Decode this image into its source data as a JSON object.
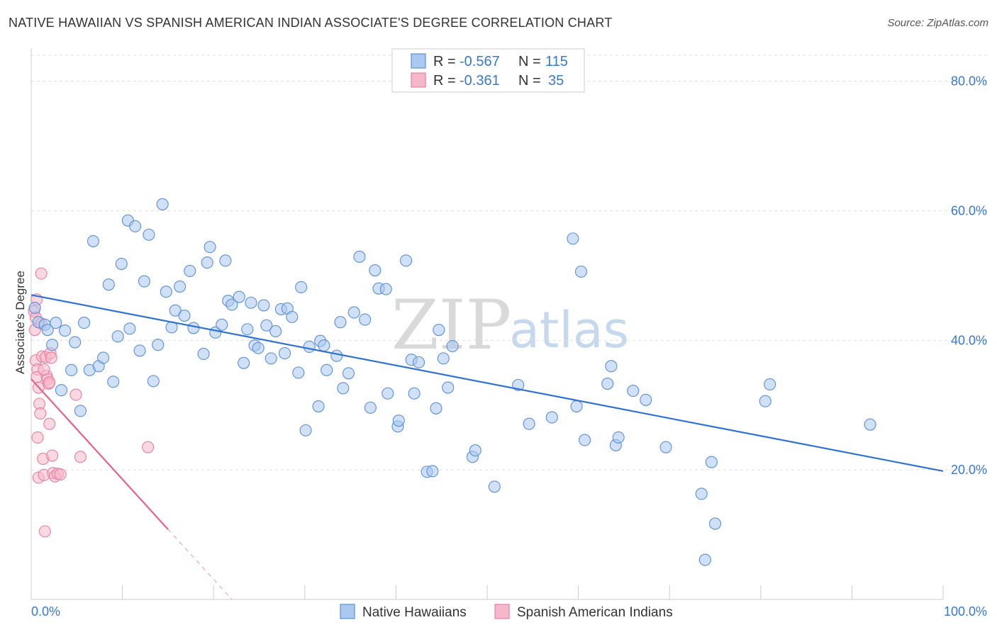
{
  "header": {
    "title": "NATIVE HAWAIIAN VS SPANISH AMERICAN INDIAN ASSOCIATE'S DEGREE CORRELATION CHART",
    "source": "Source: ZipAtlas.com"
  },
  "watermark": {
    "zip": "ZIP",
    "atlas": "atlas"
  },
  "colors": {
    "blue_fill": "#aac8f0",
    "blue_stroke": "#5b8fd4",
    "blue_line": "#2f72d0",
    "pink_fill": "#f5b8cb",
    "pink_stroke": "#e87fa2",
    "pink_line": "#e5628f",
    "accent_text": "#3a78c9",
    "grid": "#dddddd"
  },
  "legend": {
    "rows": [
      {
        "r_label": "R =",
        "r_value": "-0.567",
        "n_label": "N =",
        "n_value": "115"
      },
      {
        "r_label": "R =",
        "r_value": "-0.361",
        "n_label": "N =",
        "n_value": "35"
      }
    ]
  },
  "bottom_legend": {
    "items": [
      {
        "label": "Native Hawaiians"
      },
      {
        "label": "Spanish American Indians"
      }
    ]
  },
  "chart_data": {
    "type": "scatter",
    "title": "NATIVE HAWAIIAN VS SPANISH AMERICAN INDIAN ASSOCIATE'S DEGREE CORRELATION CHART",
    "xlabel": "",
    "ylabel": "Associate's Degree",
    "xlim": [
      0,
      100
    ],
    "ylim": [
      0,
      84
    ],
    "x_tick_labels": {
      "min": "0.0%",
      "max": "100.0%"
    },
    "y_ticks": [
      {
        "value": 80,
        "label": "80.0%"
      },
      {
        "value": 60,
        "label": "60.0%"
      },
      {
        "value": 40,
        "label": "40.0%"
      },
      {
        "value": 20,
        "label": "20.0%"
      }
    ],
    "series": [
      {
        "name": "Native Hawaiians",
        "color": "blue",
        "r": -0.567,
        "n": 115,
        "trend": {
          "x0": 0,
          "y0": 47.0,
          "x1": 100,
          "y1": 19.8,
          "dash_from": null
        },
        "points": [
          [
            0.8,
            42.8
          ],
          [
            1.5,
            42.4
          ],
          [
            1.8,
            41.6
          ],
          [
            2.3,
            39.3
          ],
          [
            2.7,
            42.7
          ],
          [
            3.3,
            32.3
          ],
          [
            3.7,
            41.5
          ],
          [
            4.4,
            35.4
          ],
          [
            4.8,
            39.7
          ],
          [
            5.4,
            29.1
          ],
          [
            5.8,
            42.7
          ],
          [
            6.4,
            35.4
          ],
          [
            6.8,
            55.3
          ],
          [
            7.4,
            36.0
          ],
          [
            7.9,
            37.3
          ],
          [
            8.5,
            48.6
          ],
          [
            9.0,
            33.6
          ],
          [
            9.5,
            40.6
          ],
          [
            9.9,
            51.8
          ],
          [
            10.6,
            58.5
          ],
          [
            10.8,
            41.8
          ],
          [
            11.4,
            57.6
          ],
          [
            11.9,
            38.4
          ],
          [
            12.4,
            49.1
          ],
          [
            12.9,
            56.3
          ],
          [
            13.4,
            33.7
          ],
          [
            13.9,
            39.3
          ],
          [
            14.4,
            61.0
          ],
          [
            14.8,
            47.5
          ],
          [
            15.4,
            42.0
          ],
          [
            15.8,
            44.6
          ],
          [
            16.3,
            48.3
          ],
          [
            16.8,
            43.8
          ],
          [
            17.4,
            50.7
          ],
          [
            17.8,
            41.9
          ],
          [
            18.9,
            37.9
          ],
          [
            19.3,
            52.0
          ],
          [
            19.6,
            54.4
          ],
          [
            20.2,
            41.2
          ],
          [
            20.9,
            42.4
          ],
          [
            21.3,
            52.3
          ],
          [
            21.6,
            46.1
          ],
          [
            22.0,
            45.5
          ],
          [
            22.8,
            46.7
          ],
          [
            23.3,
            36.5
          ],
          [
            23.7,
            41.7
          ],
          [
            24.1,
            45.8
          ],
          [
            24.5,
            39.2
          ],
          [
            24.9,
            38.8
          ],
          [
            25.5,
            45.4
          ],
          [
            25.8,
            42.3
          ],
          [
            26.3,
            37.2
          ],
          [
            26.8,
            41.4
          ],
          [
            27.4,
            44.8
          ],
          [
            27.8,
            38.0
          ],
          [
            28.1,
            44.9
          ],
          [
            28.6,
            43.6
          ],
          [
            29.3,
            35.0
          ],
          [
            29.6,
            48.2
          ],
          [
            30.1,
            26.1
          ],
          [
            30.5,
            39.0
          ],
          [
            31.5,
            29.8
          ],
          [
            31.7,
            39.9
          ],
          [
            32.1,
            39.2
          ],
          [
            32.4,
            35.4
          ],
          [
            33.5,
            37.6
          ],
          [
            33.9,
            42.8
          ],
          [
            34.2,
            32.6
          ],
          [
            34.8,
            34.9
          ],
          [
            35.4,
            44.3
          ],
          [
            36.0,
            52.9
          ],
          [
            36.6,
            43.2
          ],
          [
            37.2,
            29.6
          ],
          [
            37.7,
            50.8
          ],
          [
            38.1,
            48.0
          ],
          [
            38.9,
            47.9
          ],
          [
            39.1,
            31.8
          ],
          [
            40.2,
            26.7
          ],
          [
            40.3,
            27.6
          ],
          [
            41.1,
            52.3
          ],
          [
            41.7,
            37.0
          ],
          [
            42.0,
            31.8
          ],
          [
            42.5,
            36.6
          ],
          [
            43.4,
            19.7
          ],
          [
            44.0,
            19.8
          ],
          [
            44.4,
            29.5
          ],
          [
            44.7,
            41.6
          ],
          [
            45.2,
            37.2
          ],
          [
            45.7,
            32.7
          ],
          [
            46.2,
            39.1
          ],
          [
            48.4,
            22.0
          ],
          [
            48.7,
            23.0
          ],
          [
            50.8,
            17.4
          ],
          [
            53.4,
            33.1
          ],
          [
            54.6,
            27.1
          ],
          [
            57.1,
            28.1
          ],
          [
            59.4,
            55.7
          ],
          [
            59.8,
            29.8
          ],
          [
            60.3,
            50.6
          ],
          [
            60.7,
            24.6
          ],
          [
            63.2,
            33.3
          ],
          [
            63.6,
            36.0
          ],
          [
            64.1,
            23.8
          ],
          [
            64.4,
            25.0
          ],
          [
            66.0,
            32.2
          ],
          [
            67.4,
            30.8
          ],
          [
            69.6,
            23.5
          ],
          [
            73.5,
            16.3
          ],
          [
            73.9,
            6.1
          ],
          [
            74.6,
            21.2
          ],
          [
            75.0,
            11.7
          ],
          [
            80.5,
            30.6
          ],
          [
            81.0,
            33.2
          ],
          [
            92.0,
            27.0
          ],
          [
            0.4,
            45.0
          ]
        ]
      },
      {
        "name": "Spanish American Indians",
        "color": "pink",
        "r": -0.361,
        "n": 35,
        "trend": {
          "x0": 0,
          "y0": 34.0,
          "x1": 22.0,
          "y1": 0.0,
          "dash_from": 15.0
        },
        "points": [
          [
            0.3,
            44.5
          ],
          [
            0.5,
            43.5
          ],
          [
            0.6,
            46.3
          ],
          [
            0.4,
            41.6
          ],
          [
            0.5,
            36.9
          ],
          [
            0.7,
            35.5
          ],
          [
            0.6,
            34.3
          ],
          [
            0.8,
            32.7
          ],
          [
            0.9,
            30.2
          ],
          [
            1.0,
            28.7
          ],
          [
            0.7,
            25.0
          ],
          [
            0.8,
            18.8
          ],
          [
            1.1,
            50.3
          ],
          [
            1.2,
            37.5
          ],
          [
            1.3,
            21.7
          ],
          [
            1.4,
            19.2
          ],
          [
            1.5,
            10.5
          ],
          [
            1.6,
            37.4
          ],
          [
            1.7,
            34.5
          ],
          [
            1.8,
            34.0
          ],
          [
            1.9,
            33.3
          ],
          [
            2.0,
            27.1
          ],
          [
            2.1,
            38.0
          ],
          [
            2.2,
            37.3
          ],
          [
            2.3,
            22.2
          ],
          [
            2.4,
            19.5
          ],
          [
            2.6,
            19.0
          ],
          [
            2.9,
            19.4
          ],
          [
            3.2,
            19.3
          ],
          [
            4.9,
            31.6
          ],
          [
            5.4,
            22.0
          ],
          [
            12.8,
            23.5
          ],
          [
            1.4,
            35.5
          ],
          [
            2.0,
            33.5
          ],
          [
            1.1,
            42.6
          ]
        ]
      }
    ]
  }
}
